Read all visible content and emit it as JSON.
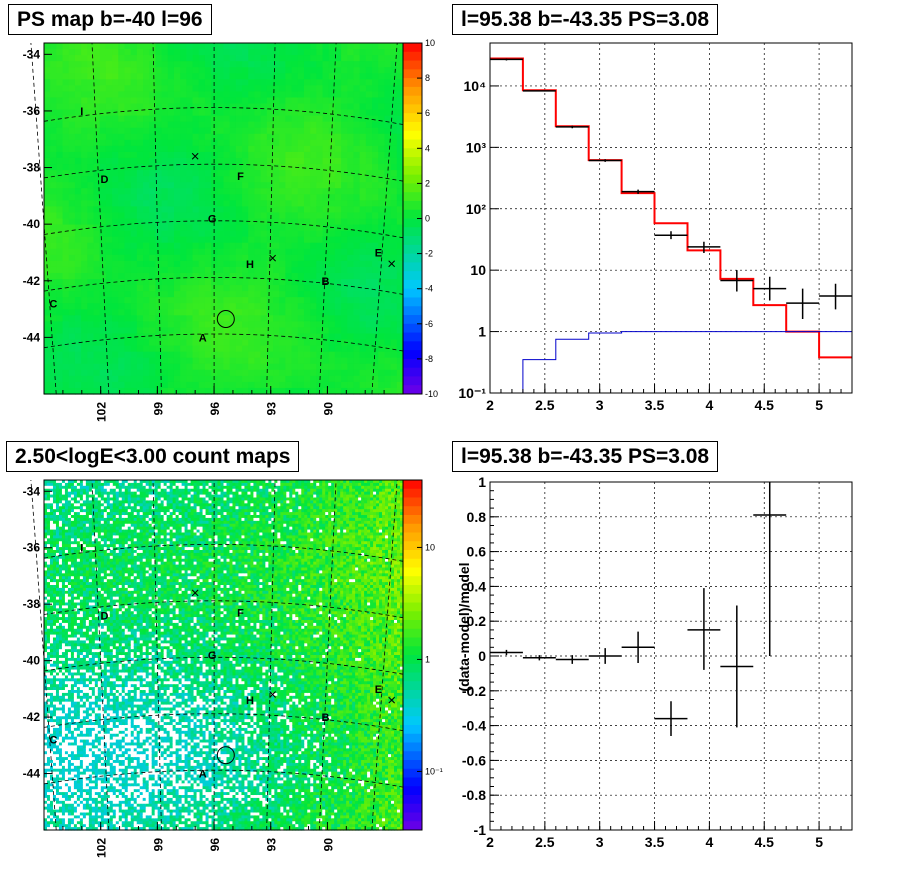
{
  "panels": {
    "tl": {
      "title": "PS map b=-40 l=96"
    },
    "tr": {
      "title": "l=95.38 b=-43.35 PS=3.08"
    },
    "bl": {
      "title": "2.50<logE<3.00 count maps"
    },
    "br": {
      "title": "l=95.38 b=-43.35 PS=3.08"
    }
  },
  "chart_data": [
    {
      "id": "ps_map",
      "type": "heatmap",
      "title": "PS map b=-40 l=96",
      "xlabel": "",
      "ylabel": "",
      "xlim": [
        105,
        86
      ],
      "ylim": [
        -46,
        -33.6
      ],
      "x_ticks": [
        102,
        99,
        96,
        93,
        90
      ],
      "y_ticks": [
        -34,
        -36,
        -38,
        -40,
        -42,
        -44
      ],
      "colorbar": {
        "min": -10,
        "max": 10,
        "ticks": [
          10,
          8,
          6,
          4,
          2,
          0,
          -2,
          -4,
          -6,
          -8,
          -10
        ],
        "scale": "linear"
      },
      "typical_value": 0,
      "labels": [
        {
          "text": "I",
          "l": 103.0,
          "b": -36.0
        },
        {
          "text": "D",
          "l": 101.8,
          "b": -38.4
        },
        {
          "text": "F",
          "l": 94.6,
          "b": -38.3
        },
        {
          "text": "G",
          "l": 96.1,
          "b": -39.8
        },
        {
          "text": "H",
          "l": 94.1,
          "b": -41.4
        },
        {
          "text": "B",
          "l": 90.1,
          "b": -42.0
        },
        {
          "text": "E",
          "l": 87.3,
          "b": -41.0
        },
        {
          "text": "C",
          "l": 104.5,
          "b": -42.8
        },
        {
          "text": "A",
          "l": 96.6,
          "b": -44.0
        }
      ],
      "crosses": [
        {
          "l": 97.0,
          "b": -37.6
        },
        {
          "l": 92.9,
          "b": -41.2
        },
        {
          "l": 86.6,
          "b": -41.4
        }
      ],
      "circle": {
        "l": 95.38,
        "b": -43.35,
        "r_deg": 0.45
      }
    },
    {
      "id": "spectrum",
      "type": "line",
      "title": "l=95.38 b=-43.35 PS=3.08",
      "xlabel": "",
      "ylabel": "",
      "xlim": [
        2,
        5.3
      ],
      "ylim": [
        0.1,
        50000
      ],
      "yscale": "log",
      "grid": true,
      "x_ticks": [
        2,
        2.5,
        3,
        3.5,
        4,
        4.5,
        5
      ],
      "y_ticks": [
        {
          "v": 0.1,
          "label": "10⁻¹"
        },
        {
          "v": 1,
          "label": "1"
        },
        {
          "v": 10,
          "label": "10"
        },
        {
          "v": 100,
          "label": "10²"
        },
        {
          "v": 1000,
          "label": "10³"
        },
        {
          "v": 10000,
          "label": "10⁴"
        }
      ],
      "bin_edges": [
        2,
        2.3,
        2.6,
        2.9,
        3.2,
        3.5,
        3.8,
        4.1,
        4.4,
        4.7,
        5.0,
        5.3
      ],
      "series": [
        {
          "color": "#ff0000",
          "values": [
            28000,
            8500,
            2200,
            620,
            180,
            58,
            21,
            7.2,
            2.7,
            1.0,
            0.38
          ]
        },
        {
          "color": "#0000cc",
          "values": [
            0.08,
            0.35,
            0.75,
            0.95,
            1.0,
            1.0,
            1.0,
            1.0,
            1.0,
            1.0,
            1.0
          ]
        }
      ],
      "points": [
        {
          "x": 2.15,
          "y": 27000,
          "ylo": 26000,
          "yhi": 28000
        },
        {
          "x": 2.45,
          "y": 8300,
          "ylo": 8100,
          "yhi": 8500
        },
        {
          "x": 2.75,
          "y": 2150,
          "ylo": 2050,
          "yhi": 2250
        },
        {
          "x": 3.05,
          "y": 610,
          "ylo": 580,
          "yhi": 640
        },
        {
          "x": 3.35,
          "y": 190,
          "ylo": 175,
          "yhi": 205
        },
        {
          "x": 3.65,
          "y": 37,
          "ylo": 32,
          "yhi": 43
        },
        {
          "x": 3.95,
          "y": 24,
          "ylo": 19,
          "yhi": 29
        },
        {
          "x": 4.25,
          "y": 6.8,
          "ylo": 4.5,
          "yhi": 10
        },
        {
          "x": 4.55,
          "y": 5.0,
          "ylo": 3.2,
          "yhi": 7.8
        },
        {
          "x": 4.85,
          "y": 2.9,
          "ylo": 1.6,
          "yhi": 5.0
        },
        {
          "x": 5.15,
          "y": 3.8,
          "ylo": 2.3,
          "yhi": 6.0
        }
      ]
    },
    {
      "id": "count_map",
      "type": "heatmap",
      "title": "2.50<logE<3.00 count maps",
      "xlabel": "",
      "ylabel": "",
      "xlim": [
        105,
        86
      ],
      "ylim": [
        -46,
        -33.6
      ],
      "x_ticks": [
        102,
        99,
        96,
        93,
        90
      ],
      "y_ticks": [
        -34,
        -36,
        -38,
        -40,
        -42,
        -44
      ],
      "colorbar": {
        "min": 0.03,
        "max": 40,
        "scale": "log",
        "ticks": [
          {
            "v": 10,
            "label": "10"
          },
          {
            "v": 1,
            "label": "1"
          },
          {
            "v": 0.1,
            "label": "10⁻¹"
          }
        ]
      },
      "labels": [
        {
          "text": "I",
          "l": 103.0,
          "b": -36.0
        },
        {
          "text": "D",
          "l": 101.8,
          "b": -38.4
        },
        {
          "text": "F",
          "l": 94.6,
          "b": -38.3
        },
        {
          "text": "G",
          "l": 96.1,
          "b": -39.8
        },
        {
          "text": "H",
          "l": 94.1,
          "b": -41.4
        },
        {
          "text": "B",
          "l": 90.1,
          "b": -42.0
        },
        {
          "text": "E",
          "l": 87.3,
          "b": -41.0
        },
        {
          "text": "C",
          "l": 104.5,
          "b": -42.8
        },
        {
          "text": "A",
          "l": 96.6,
          "b": -44.0
        }
      ],
      "crosses": [
        {
          "l": 97.0,
          "b": -37.6
        },
        {
          "l": 92.9,
          "b": -41.2
        },
        {
          "l": 86.6,
          "b": -41.4
        }
      ],
      "circle": {
        "l": 95.38,
        "b": -43.35,
        "r_deg": 0.45
      }
    },
    {
      "id": "residuals",
      "type": "scatter",
      "title": "l=95.38 b=-43.35 PS=3.08",
      "xlabel": "",
      "ylabel": "(data-model)/model",
      "xlim": [
        2,
        5.3
      ],
      "ylim": [
        -1,
        1
      ],
      "grid": true,
      "x_ticks": [
        2,
        2.5,
        3,
        3.5,
        4,
        4.5,
        5
      ],
      "y_ticks": [
        -1,
        -0.8,
        -0.6,
        -0.4,
        -0.2,
        0,
        0.2,
        0.4,
        0.6,
        0.8,
        1
      ],
      "points": [
        {
          "x": 2.15,
          "y": 0.02,
          "ylo": 0.005,
          "yhi": 0.035
        },
        {
          "x": 2.45,
          "y": -0.01,
          "ylo": -0.025,
          "yhi": 0.005
        },
        {
          "x": 2.75,
          "y": -0.02,
          "ylo": -0.045,
          "yhi": 0.005
        },
        {
          "x": 3.05,
          "y": 0.0,
          "ylo": -0.045,
          "yhi": 0.045
        },
        {
          "x": 3.35,
          "y": 0.05,
          "ylo": -0.04,
          "yhi": 0.14
        },
        {
          "x": 3.65,
          "y": -0.36,
          "ylo": -0.46,
          "yhi": -0.26
        },
        {
          "x": 3.95,
          "y": 0.15,
          "ylo": -0.08,
          "yhi": 0.39
        },
        {
          "x": 4.25,
          "y": -0.06,
          "ylo": -0.41,
          "yhi": 0.29
        },
        {
          "x": 4.55,
          "y": 0.81,
          "ylo": 0.0,
          "yhi": 1.0
        }
      ]
    }
  ]
}
